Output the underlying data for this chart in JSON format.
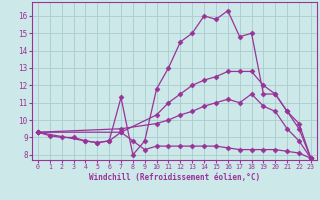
{
  "xlabel": "Windchill (Refroidissement éolien,°C)",
  "bg_color": "#cce8e8",
  "line_color": "#993399",
  "grid_color": "#aacccc",
  "xlim": [
    -0.5,
    23.5
  ],
  "ylim": [
    7.7,
    16.8
  ],
  "xticks": [
    0,
    1,
    2,
    3,
    4,
    5,
    6,
    7,
    8,
    9,
    10,
    11,
    12,
    13,
    14,
    15,
    16,
    17,
    18,
    19,
    20,
    21,
    22,
    23
  ],
  "yticks": [
    8,
    9,
    10,
    11,
    12,
    13,
    14,
    15,
    16
  ],
  "s1_x": [
    0,
    1,
    2,
    3,
    4,
    5,
    6,
    7,
    8,
    9,
    10,
    11,
    12,
    13,
    14,
    15,
    16,
    17,
    18,
    19,
    20,
    21,
    22,
    23
  ],
  "s1_y": [
    9.3,
    9.1,
    9.0,
    9.0,
    8.8,
    8.7,
    8.8,
    11.3,
    8.0,
    8.8,
    11.8,
    13.0,
    14.5,
    15.0,
    16.0,
    15.8,
    16.3,
    14.8,
    15.0,
    11.5,
    11.5,
    10.5,
    9.8,
    7.8
  ],
  "s2_x": [
    0,
    7,
    10,
    11,
    12,
    13,
    14,
    15,
    16,
    17,
    18,
    19,
    20,
    21,
    22,
    23
  ],
  "s2_y": [
    9.3,
    9.3,
    10.3,
    11.0,
    11.5,
    12.0,
    12.3,
    12.5,
    12.8,
    12.8,
    12.8,
    12.0,
    11.5,
    10.5,
    9.5,
    7.8
  ],
  "s3_x": [
    0,
    7,
    10,
    11,
    12,
    13,
    14,
    15,
    16,
    17,
    18,
    19,
    20,
    21,
    22,
    23
  ],
  "s3_y": [
    9.3,
    9.5,
    9.8,
    10.0,
    10.3,
    10.5,
    10.8,
    11.0,
    11.2,
    11.0,
    11.5,
    10.8,
    10.5,
    9.5,
    8.8,
    7.8
  ],
  "s4_x": [
    0,
    4,
    5,
    6,
    7,
    8,
    9,
    10,
    11,
    12,
    13,
    14,
    15,
    16,
    17,
    18,
    19,
    20,
    21,
    22,
    23
  ],
  "s4_y": [
    9.3,
    8.8,
    8.7,
    8.8,
    9.3,
    8.8,
    8.3,
    8.5,
    8.5,
    8.5,
    8.5,
    8.5,
    8.5,
    8.4,
    8.3,
    8.3,
    8.3,
    8.3,
    8.2,
    8.1,
    7.8
  ],
  "marker": "D",
  "markersize": 2.5,
  "linewidth": 0.9
}
